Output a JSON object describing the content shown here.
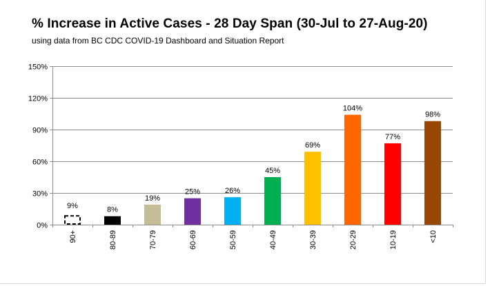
{
  "chart_data": {
    "type": "bar",
    "title": "% Increase in Active Cases - 28 Day Span (30-Jul to 27-Aug-20)",
    "subtitle": "using data from BC CDC COVID-19 Dashboard and Situation Report",
    "xlabel": "",
    "ylabel": "",
    "categories": [
      "90+",
      "80-89",
      "70-79",
      "60-69",
      "50-59",
      "40-49",
      "30-39",
      "20-29",
      "10-19",
      "<10"
    ],
    "values": [
      9,
      8,
      19,
      25,
      26,
      45,
      69,
      104,
      77,
      98
    ],
    "data_labels": [
      "9%",
      "8%",
      "19%",
      "25%",
      "26%",
      "45%",
      "69%",
      "104%",
      "77%",
      "98%"
    ],
    "colors": [
      "#ffffff",
      "#000000",
      "#c4bd97",
      "#7030a0",
      "#00b0f0",
      "#00b050",
      "#ffc000",
      "#ff6600",
      "#ff0000",
      "#974706"
    ],
    "dashed_outline": [
      true,
      false,
      false,
      false,
      false,
      false,
      false,
      false,
      false,
      false
    ],
    "ylim": [
      0,
      150
    ],
    "yticks": [
      0,
      30,
      60,
      90,
      120,
      150
    ],
    "ytick_labels": [
      "0%",
      "30%",
      "60%",
      "90%",
      "120%",
      "150%"
    ],
    "grid": true,
    "legend": "none"
  }
}
